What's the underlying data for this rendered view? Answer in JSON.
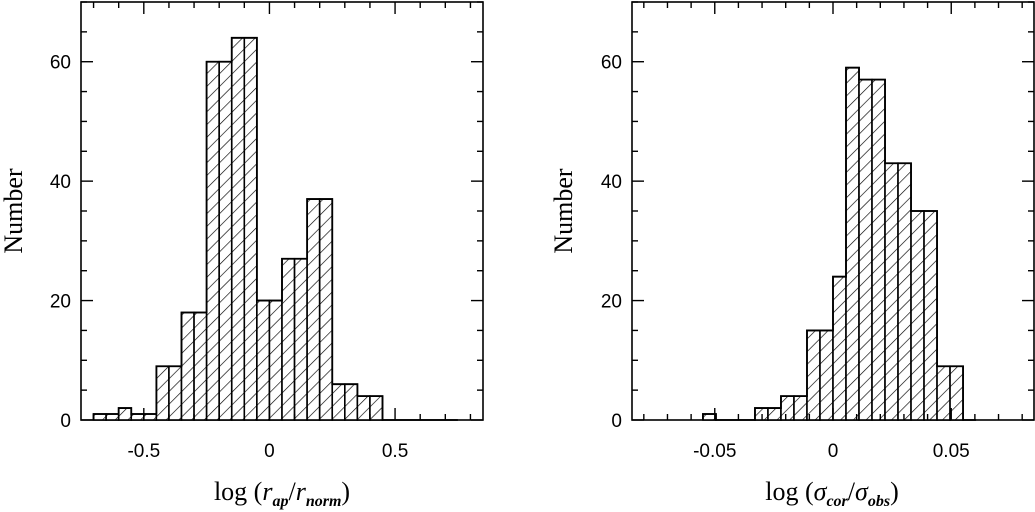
{
  "chart_data": [
    {
      "type": "bar",
      "ylabel": "Number",
      "xlabel": {
        "prefix": "log  (",
        "var1": "r",
        "sub1": "ap",
        "var2": "r",
        "sub2": "norm",
        "suffix": ")"
      },
      "xlim": [
        -0.75,
        0.85
      ],
      "ylim": [
        0,
        70
      ],
      "xticks": [
        -0.5,
        0,
        0.5
      ],
      "xtick_labels": [
        "-0.5",
        "0",
        "0.5"
      ],
      "yticks": [
        0,
        20,
        40,
        60
      ],
      "ytick_labels": [
        "0",
        "20",
        "40",
        "60"
      ],
      "bin_width": 0.05,
      "bin_starts": [
        -0.7,
        -0.65,
        -0.6,
        -0.55,
        -0.5,
        -0.45,
        -0.4,
        -0.35,
        -0.3,
        -0.25,
        -0.2,
        -0.15,
        -0.1,
        -0.05,
        0.0,
        0.05,
        0.1,
        0.15,
        0.2,
        0.25,
        0.3,
        0.35,
        0.4,
        0.45,
        0.5,
        0.55,
        0.6,
        0.65,
        0.7
      ],
      "values": [
        1,
        1,
        2,
        1,
        1,
        9,
        9,
        18,
        18,
        60,
        60,
        64,
        64,
        20,
        20,
        27,
        27,
        37,
        37,
        6,
        6,
        4,
        4,
        0,
        0,
        0,
        0,
        0,
        0
      ]
    },
    {
      "type": "bar",
      "ylabel": "Number",
      "xlabel": {
        "prefix": "log  (",
        "var1": "σ",
        "sub1": "cor",
        "var2": "σ",
        "sub2": "obs",
        "suffix": ")"
      },
      "xlim": [
        -0.085,
        0.085
      ],
      "ylim": [
        0,
        70
      ],
      "xticks": [
        -0.05,
        0,
        0.05
      ],
      "xtick_labels": [
        "-0.05",
        "0",
        "0.05"
      ],
      "yticks": [
        0,
        20,
        40,
        60
      ],
      "ytick_labels": [
        "0",
        "20",
        "40",
        "60"
      ],
      "bin_width": 0.0055,
      "bin_starts": [
        -0.055,
        -0.0495,
        -0.044,
        -0.0385,
        -0.033,
        -0.0275,
        -0.022,
        -0.0165,
        -0.011,
        -0.0055,
        0.0,
        0.0055,
        0.011,
        0.0165,
        0.022,
        0.0275,
        0.033,
        0.0385,
        0.044,
        0.0495,
        0.055
      ],
      "values": [
        1,
        0,
        0,
        0,
        2,
        2,
        4,
        4,
        15,
        15,
        24,
        59,
        57,
        57,
        43,
        43,
        35,
        35,
        9,
        9,
        0
      ]
    }
  ]
}
